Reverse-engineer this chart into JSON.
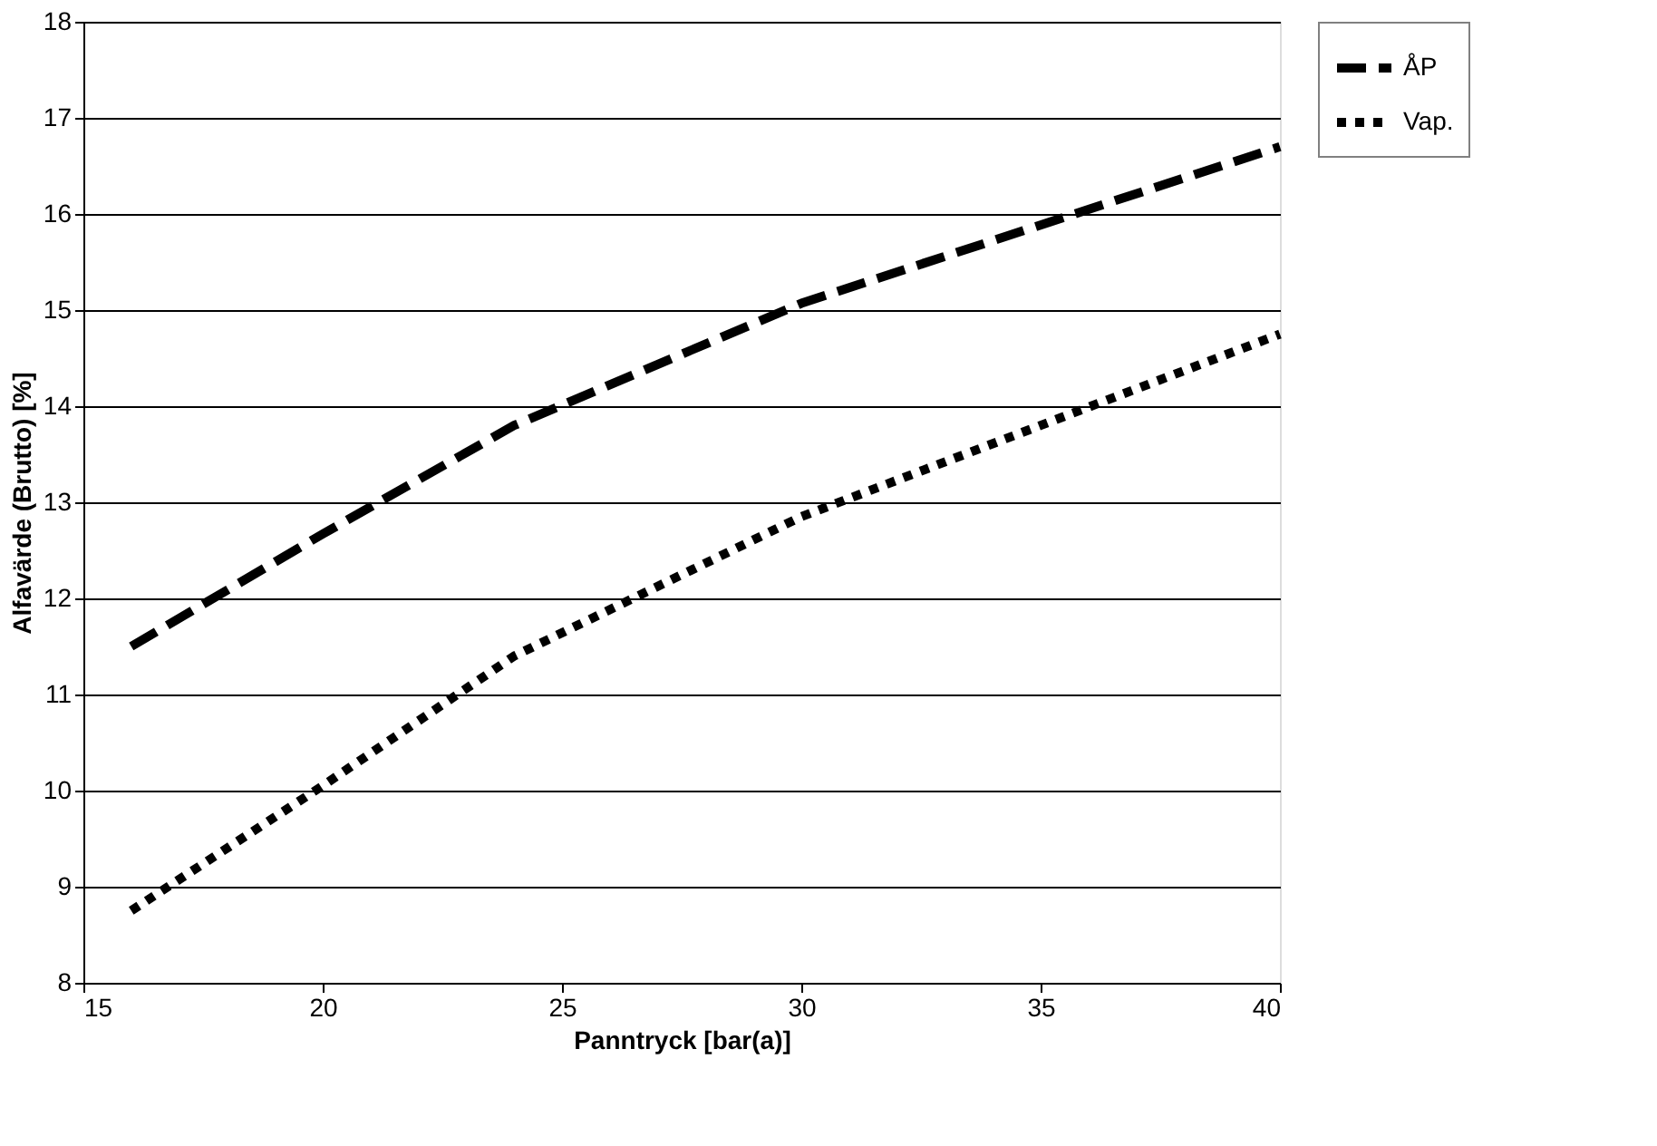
{
  "chart_data": {
    "type": "line",
    "xlabel": "Panntryck [bar(a)]",
    "ylabel": "Alfavärde (Brutto) [%]",
    "xlim": [
      15,
      40
    ],
    "xticks": [
      15,
      20,
      25,
      30,
      35,
      40
    ],
    "ylim": [
      8,
      18
    ],
    "yticks": [
      8,
      9,
      10,
      11,
      12,
      13,
      14,
      15,
      16,
      17,
      18
    ],
    "grid": "y",
    "legend": "right",
    "marker": "none",
    "series": [
      {
        "name": "ÅP",
        "color": "#000000",
        "line_style": "dashed",
        "x": [
          16,
          20,
          24,
          30,
          40
        ],
        "values": [
          11.5,
          12.67,
          13.8,
          15.07,
          16.7
        ]
      },
      {
        "name": "Vap.",
        "color": "#000000",
        "line_style": "dotted",
        "x": [
          16,
          20,
          24,
          30,
          40
        ],
        "values": [
          8.75,
          10.05,
          11.4,
          12.85,
          14.75
        ]
      }
    ]
  }
}
